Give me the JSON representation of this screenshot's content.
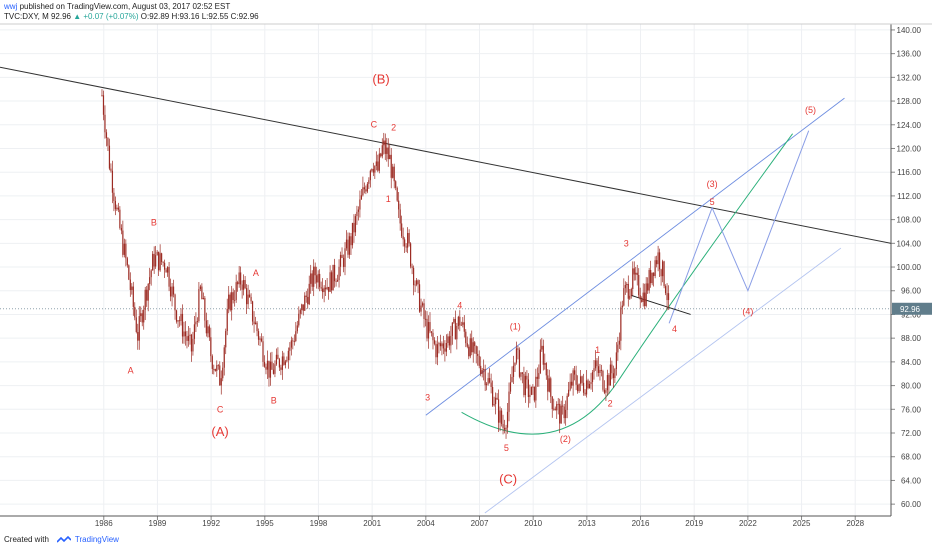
{
  "header": {
    "user": "wwj",
    "published": "published on TradingView.com, August 03, 2017 02:52 EST",
    "symbol_line": "TVC:DXY, M  92.96",
    "change": "▲ +0.07 (+0.07%)",
    "ohlc": "O:92.89 H:93.16 L:92.55 C:92.96"
  },
  "footer": {
    "created_with": "Created with",
    "brand": "TradingView"
  },
  "colors": {
    "candle": "#9c2b23",
    "wave_label": "#e53935",
    "trend": "#333333",
    "channel": "#6d8de0",
    "channel_light": "#b3c4f0",
    "curve": "#2bb07a",
    "projection": "#8a9ee6",
    "price_tag": "#607d8b"
  },
  "chart_data": {
    "type": "candlestick",
    "symbol": "TVC:DXY",
    "interval": "M",
    "ylim": [
      58,
      141
    ],
    "xlim": [
      1980.2,
      2030.0
    ],
    "y_ticks": [
      "140.00",
      "136.00",
      "132.00",
      "128.00",
      "124.00",
      "120.00",
      "116.00",
      "112.00",
      "108.00",
      "104.00",
      "100.00",
      "96.00",
      "92.00",
      "88.00",
      "84.00",
      "80.00",
      "76.00",
      "72.00",
      "68.00",
      "64.00",
      "60.00"
    ],
    "x_ticks": [
      "1986",
      "1989",
      "1992",
      "1995",
      "1998",
      "2001",
      "2004",
      "2007",
      "2010",
      "2013",
      "2016",
      "2019",
      "2022",
      "2025",
      "2028"
    ],
    "last_price": "92.96",
    "last_value": 92.96,
    "price_path": [
      [
        1985.9,
        129.0
      ],
      [
        1986.3,
        118.0
      ],
      [
        1986.8,
        108.0
      ],
      [
        1987.3,
        100.0
      ],
      [
        1987.9,
        88.5
      ],
      [
        1988.3,
        95.0
      ],
      [
        1988.8,
        101.5
      ],
      [
        1989.5,
        100.5
      ],
      [
        1990.0,
        93.0
      ],
      [
        1990.5,
        89.0
      ],
      [
        1990.9,
        86.0
      ],
      [
        1991.4,
        96.0
      ],
      [
        1992.0,
        85.0
      ],
      [
        1992.5,
        81.0
      ],
      [
        1993.0,
        94.0
      ],
      [
        1993.7,
        98.0
      ],
      [
        1994.5,
        90.0
      ],
      [
        1995.3,
        82.0
      ],
      [
        1995.8,
        84.0
      ],
      [
        1996.5,
        87.0
      ],
      [
        1997.2,
        94.0
      ],
      [
        1997.8,
        99.0
      ],
      [
        1998.5,
        97.0
      ],
      [
        1999.2,
        100.0
      ],
      [
        1999.8,
        104.5
      ],
      [
        2000.5,
        112.5
      ],
      [
        2001.0,
        118.0
      ],
      [
        2001.3,
        116.0
      ],
      [
        2001.6,
        120.5
      ],
      [
        2002.0,
        118.0
      ],
      [
        2002.5,
        108.0
      ],
      [
        2003.0,
        104.0
      ],
      [
        2003.5,
        96.0
      ],
      [
        2004.0,
        90.0
      ],
      [
        2004.6,
        86.0
      ],
      [
        2005.3,
        88.0
      ],
      [
        2005.9,
        91.0
      ],
      [
        2006.5,
        86.0
      ],
      [
        2007.2,
        83.0
      ],
      [
        2007.8,
        78.0
      ],
      [
        2008.3,
        73.0
      ],
      [
        2008.6,
        76.0
      ],
      [
        2009.0,
        86.0
      ],
      [
        2009.5,
        80.0
      ],
      [
        2010.0,
        78.0
      ],
      [
        2010.5,
        86.0
      ],
      [
        2011.0,
        78.0
      ],
      [
        2011.6,
        74.5
      ],
      [
        2012.2,
        81.0
      ],
      [
        2012.8,
        80.0
      ],
      [
        2013.5,
        83.0
      ],
      [
        2014.0,
        80.5
      ],
      [
        2014.6,
        83.0
      ],
      [
        2015.0,
        95.0
      ],
      [
        2015.6,
        98.0
      ],
      [
        2016.2,
        95.0
      ],
      [
        2016.8,
        101.0
      ],
      [
        2017.0,
        102.0
      ],
      [
        2017.4,
        97.0
      ],
      [
        2017.6,
        92.96
      ]
    ],
    "annotations": [
      {
        "text": "(B)",
        "x": 2001.5,
        "y": 131.0,
        "big": true
      },
      {
        "text": "C",
        "x": 2001.1,
        "y": 123.5
      },
      {
        "text": "2",
        "x": 2002.2,
        "y": 123.0
      },
      {
        "text": "1",
        "x": 2001.9,
        "y": 111.0
      },
      {
        "text": "B",
        "x": 1988.8,
        "y": 107.0
      },
      {
        "text": "A",
        "x": 1994.5,
        "y": 98.5
      },
      {
        "text": "A",
        "x": 1987.5,
        "y": 82.0
      },
      {
        "text": "C",
        "x": 1992.5,
        "y": 75.5
      },
      {
        "text": "B",
        "x": 1995.5,
        "y": 77.0
      },
      {
        "text": "(A)",
        "x": 1992.5,
        "y": 71.5,
        "big": true
      },
      {
        "text": "4",
        "x": 2005.9,
        "y": 93.0
      },
      {
        "text": "3",
        "x": 2004.1,
        "y": 77.5
      },
      {
        "text": "(1)",
        "x": 2009.0,
        "y": 89.5
      },
      {
        "text": "5",
        "x": 2008.5,
        "y": 69.0
      },
      {
        "text": "(C)",
        "x": 2008.6,
        "y": 63.5,
        "big": true
      },
      {
        "text": "(2)",
        "x": 2011.8,
        "y": 70.5
      },
      {
        "text": "1",
        "x": 2013.6,
        "y": 85.5
      },
      {
        "text": "2",
        "x": 2014.3,
        "y": 76.5
      },
      {
        "text": "3",
        "x": 2015.2,
        "y": 103.5
      },
      {
        "text": "4",
        "x": 2017.9,
        "y": 89.0
      },
      {
        "text": "(3)",
        "x": 2020.0,
        "y": 113.5
      },
      {
        "text": "5",
        "x": 2020.0,
        "y": 110.5
      },
      {
        "text": "(4)",
        "x": 2022.0,
        "y": 92.0
      },
      {
        "text": "(5)",
        "x": 2025.5,
        "y": 126.0
      }
    ]
  }
}
